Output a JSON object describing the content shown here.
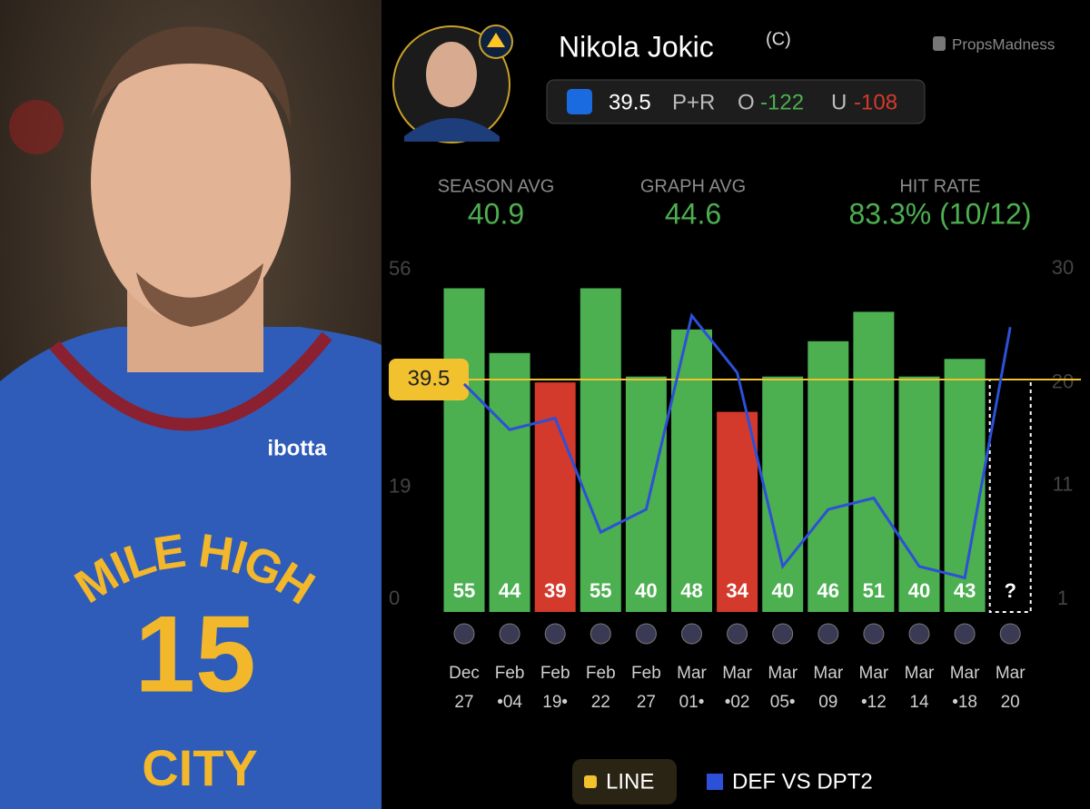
{
  "header": {
    "player": "Nikola Jokic",
    "badge": "(C)",
    "brand": "PropsMadness",
    "market": "P+R",
    "over_prefix": "O",
    "over_odds": "-122",
    "under_prefix": "U",
    "under_odds": "-108"
  },
  "stats": [
    {
      "label": "SEASON AVG",
      "value": "40.9"
    },
    {
      "label": "GRAPH AVG",
      "value": "44.6"
    },
    {
      "label": "HIT RATE",
      "value": "83.3% (10/12)"
    }
  ],
  "photo": {
    "sponsor": "ibotta",
    "jersey_top": "MILE HIGH",
    "number": "15",
    "jersey_bottom": "CITY"
  },
  "chart_data": {
    "type": "bar",
    "categories": [
      "Dec 27",
      "Feb •04",
      "Feb 19•",
      "Feb 22",
      "Feb 27",
      "Mar 01•",
      "Mar •02",
      "Mar 05•",
      "Mar 09",
      "Mar •12",
      "Mar 14",
      "Mar •18",
      "Mar 20"
    ],
    "values": [
      55,
      44,
      39,
      55,
      40,
      48,
      34,
      40,
      46,
      51,
      40,
      43,
      null
    ],
    "pending_label": "?",
    "colors": {
      "over": "#4caf50",
      "under": "#d33a2c"
    },
    "line": 39.5,
    "line_label": "LINE",
    "line_color": "#f2c12e",
    "series": [
      {
        "name": "DEF VS DPT2",
        "color": "#2c50d8",
        "axis": "y2",
        "values": [
          21,
          17,
          18,
          8,
          10,
          27,
          22,
          5,
          10,
          11,
          5,
          4,
          26
        ]
      }
    ],
    "ylim": [
      0,
      56
    ],
    "yticks": [
      0,
      19,
      56
    ],
    "y2lim": [
      1,
      30
    ],
    "y2ticks": [
      1,
      11,
      20,
      30
    ],
    "grid": false
  }
}
